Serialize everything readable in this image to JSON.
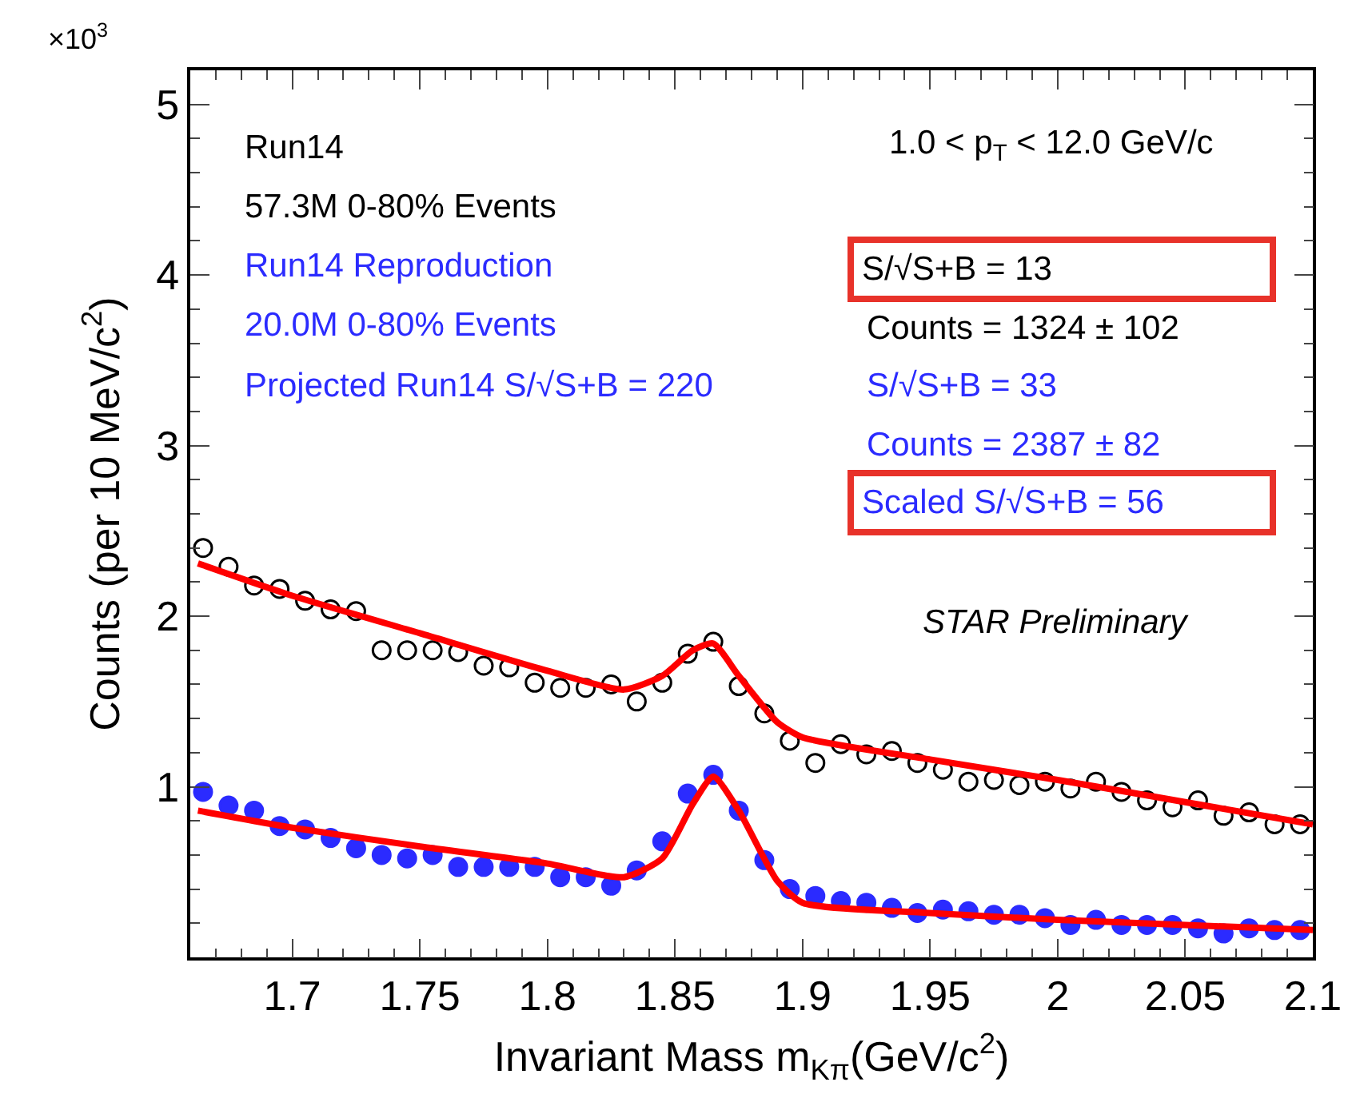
{
  "chart_data": {
    "type": "scatter",
    "xlabel": "Invariant Mass m$_{Kπ}$(GeV/c$^{2}$)",
    "ylabel": "Counts (per 10 MeV/c$^{2}$)",
    "xlim": [
      1.66,
      2.1
    ],
    "xticks": [
      1.7,
      1.75,
      1.8,
      1.85,
      1.9,
      1.95,
      2,
      2.05,
      2.1
    ],
    "ylim": [
      0,
      5.2
    ],
    "yticks": [
      1,
      2,
      3,
      4,
      5
    ],
    "marker": "circle",
    "x": [
      1.665,
      1.675,
      1.685,
      1.695,
      1.705,
      1.715,
      1.725,
      1.735,
      1.745,
      1.755,
      1.765,
      1.775,
      1.785,
      1.795,
      1.805,
      1.815,
      1.825,
      1.835,
      1.845,
      1.855,
      1.865,
      1.875,
      1.885,
      1.895,
      1.905,
      1.915,
      1.925,
      1.935,
      1.945,
      1.955,
      1.965,
      1.975,
      1.985,
      1.995,
      2.005,
      2.015,
      2.025,
      2.035,
      2.045,
      2.055,
      2.065,
      2.075,
      2.085,
      2.095
    ],
    "series": [
      {
        "color": "#000000",
        "values": [
          2.4,
          2.29,
          2.18,
          2.16,
          2.09,
          2.04,
          2.03,
          1.8,
          1.8,
          1.8,
          1.79,
          1.71,
          1.7,
          1.61,
          1.58,
          1.58,
          1.6,
          1.5,
          1.61,
          1.78,
          1.85,
          1.59,
          1.43,
          1.27,
          1.14,
          1.25,
          1.19,
          1.21,
          1.14,
          1.1,
          1.03,
          1.04,
          1.01,
          1.03,
          0.99,
          1.03,
          0.97,
          0.92,
          0.88,
          0.92,
          0.83,
          0.85,
          0.78,
          0.78
        ]
      },
      {
        "color": "#2b2bff",
        "values": [
          0.97,
          0.89,
          0.86,
          0.77,
          0.75,
          0.7,
          0.64,
          0.6,
          0.58,
          0.6,
          0.53,
          0.53,
          0.53,
          0.53,
          0.47,
          0.47,
          0.42,
          0.51,
          0.68,
          0.96,
          1.07,
          0.86,
          0.57,
          0.4,
          0.36,
          0.33,
          0.32,
          0.29,
          0.26,
          0.28,
          0.27,
          0.25,
          0.25,
          0.23,
          0.19,
          0.22,
          0.19,
          0.19,
          0.19,
          0.17,
          0.14,
          0.17,
          0.16,
          0.16
        ]
      },
      {
        "type": "line",
        "color": "#ff0000",
        "marker": "none",
        "x": [
          1.663,
          1.7,
          1.75,
          1.8,
          1.83,
          1.845,
          1.857,
          1.865,
          1.875,
          1.89,
          1.9,
          1.95,
          2.0,
          2.05,
          2.1
        ],
        "values": [
          2.31,
          2.12,
          1.9,
          1.68,
          1.57,
          1.65,
          1.8,
          1.84,
          1.65,
          1.38,
          1.29,
          1.16,
          1.04,
          0.91,
          0.78
        ]
      },
      {
        "type": "line",
        "color": "#ff0000",
        "marker": "none",
        "x": [
          1.663,
          1.7,
          1.75,
          1.8,
          1.83,
          1.845,
          1.857,
          1.865,
          1.875,
          1.89,
          1.9,
          1.95,
          2.0,
          2.05,
          2.1
        ],
        "values": [
          0.86,
          0.76,
          0.65,
          0.55,
          0.47,
          0.58,
          0.9,
          1.06,
          0.86,
          0.45,
          0.32,
          0.26,
          0.22,
          0.19,
          0.16
        ]
      }
    ],
    "annotations": [
      "×10$^{3}$",
      "Run14",
      "57.3M 0-80% Events",
      "Run14 Reproduction",
      "20.0M 0-80% Events",
      "Projected Run14 S/√S+B = 220",
      "1.0 < p$_{T}$ < 12.0 GeV/c",
      "S/√S+B = 13",
      "Counts = 1324 ± 102",
      "S/√S+B = 33",
      "Counts = 2387 ± 82",
      "Scaled S/√S+B = 56",
      "STAR Preliminary"
    ]
  }
}
